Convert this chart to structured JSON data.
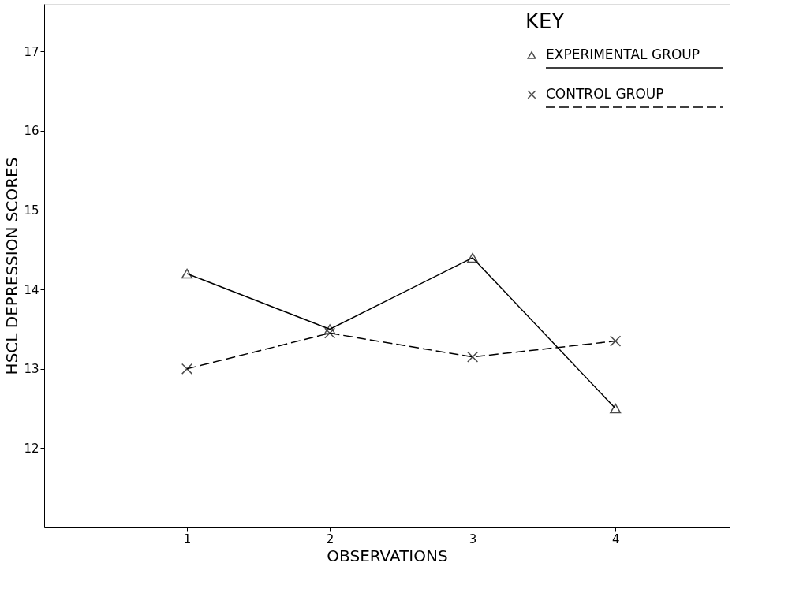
{
  "chart_data": {
    "type": "line",
    "xlabel": "OBSERVATIONS",
    "ylabel": "HSCL DEPRESSION SCORES",
    "legend_title": "KEY",
    "x": [
      1,
      2,
      3,
      4
    ],
    "xlim": [
      0,
      4.8
    ],
    "xticks": [
      1,
      2,
      3,
      4
    ],
    "ylim": [
      11,
      17.6
    ],
    "yticks": [
      12,
      13,
      14,
      15,
      16,
      17
    ],
    "grid": false,
    "legend": "top right",
    "series": [
      {
        "name": "EXPERIMENTAL GROUP",
        "color": "#000000",
        "marker": "triangle",
        "line_style": "solid",
        "values": [
          14.2,
          13.5,
          14.4,
          12.5
        ]
      },
      {
        "name": "CONTROL GROUP",
        "color": "#000000",
        "marker": "cross",
        "line_style": "dashed",
        "values": [
          13.0,
          13.45,
          13.15,
          13.35
        ]
      }
    ]
  }
}
